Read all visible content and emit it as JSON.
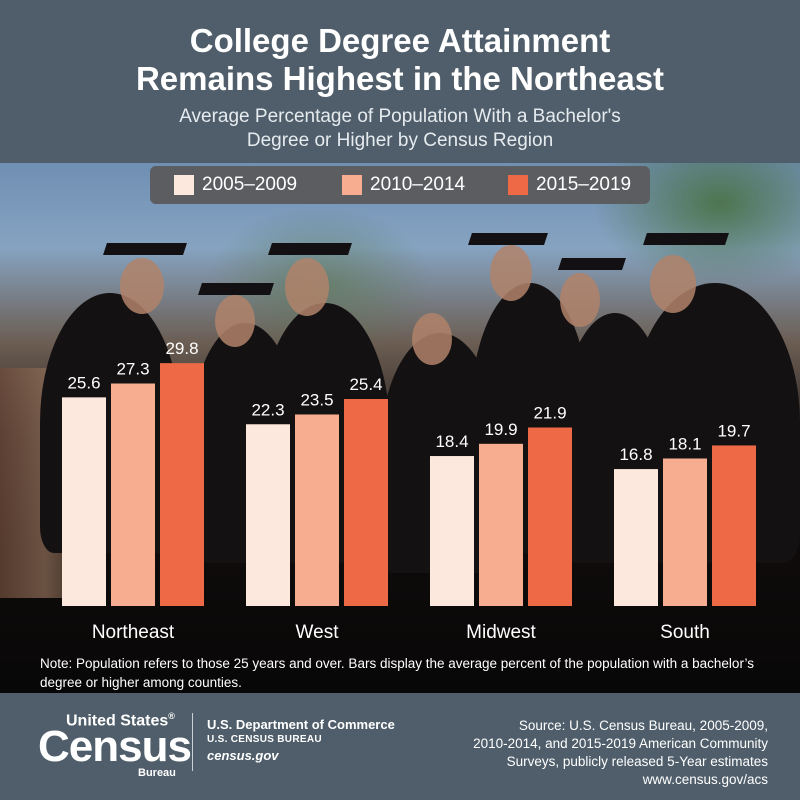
{
  "header": {
    "title_line1": "College Degree Attainment",
    "title_line2": "Remains Highest in the Northeast",
    "subtitle_line1": "Average Percentage of Population With a Bachelor's",
    "subtitle_line2": "Degree or Higher by Census Region"
  },
  "colors": {
    "header_bg": "#4f5e6a",
    "series_2005_2009": "#fde8dd",
    "series_2010_2014": "#f7ad8f",
    "series_2015_2019": "#ee6a47"
  },
  "chart_data": {
    "type": "bar",
    "title": "College Degree Attainment Remains Highest in the Northeast",
    "subtitle": "Average Percentage of Population With a Bachelor's Degree or Higher by Census Region",
    "categories": [
      "Northeast",
      "West",
      "Midwest",
      "South"
    ],
    "series": [
      {
        "name": "2005–2009",
        "values": [
          25.6,
          22.3,
          18.4,
          16.8
        ],
        "color": "#fde8dd"
      },
      {
        "name": "2010–2014",
        "values": [
          27.3,
          23.5,
          19.9,
          18.1
        ],
        "color": "#f7ad8f"
      },
      {
        "name": "2015–2019",
        "values": [
          29.8,
          25.4,
          21.9,
          19.7
        ],
        "color": "#ee6a47"
      }
    ],
    "ylim": [
      0,
      35
    ],
    "grid": false,
    "legend_position": "top",
    "data_labels": true
  },
  "note": "Note: Population refers to those 25 years and over. Bars display the average percent of the population with a bachelor’s degree or higher among counties.",
  "footer": {
    "logo_us": "United States",
    "logo_reg": "®",
    "logo_word": "Census",
    "logo_bureau": "Bureau",
    "dept_name": "U.S. Department of Commerce",
    "dept_bureau": "U.S. CENSUS BUREAU",
    "dept_site": "census.gov",
    "source_line1": "Source: U.S. Census Bureau, 2005-2009,",
    "source_line2": "2010-2014, and 2015-2019 American Community",
    "source_line3": "Surveys, publicly released 5-Year estimates",
    "source_line4": "www.census.gov/acs"
  }
}
